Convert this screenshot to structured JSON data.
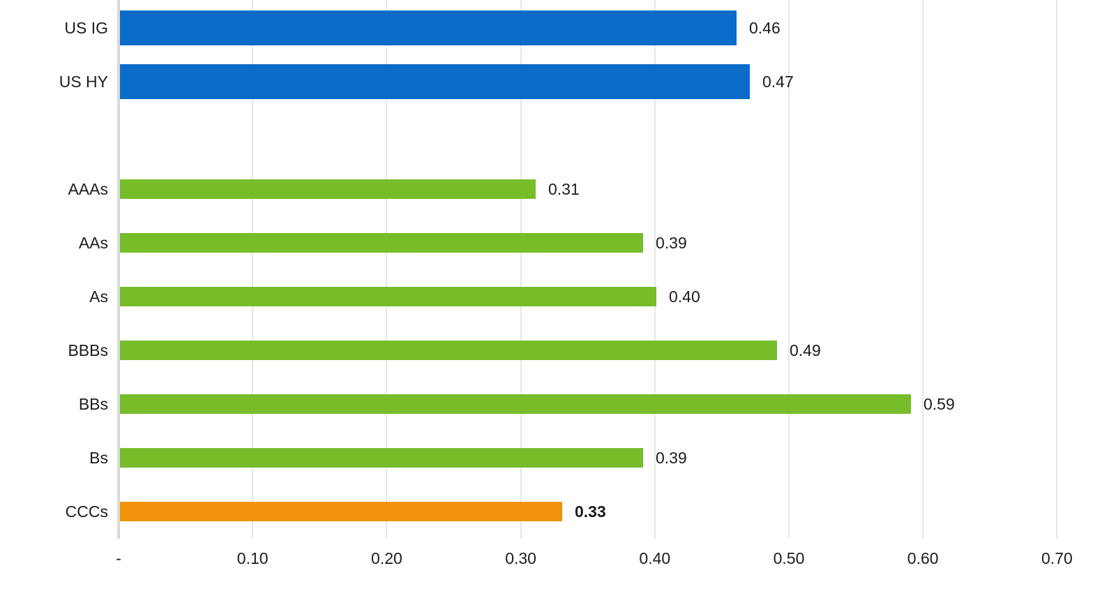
{
  "chart_data": {
    "type": "bar",
    "orientation": "horizontal",
    "title": "",
    "xlabel": "",
    "ylabel": "",
    "xlim": [
      0,
      0.7
    ],
    "grid": true,
    "legend": false,
    "x_ticks": [
      {
        "value": 0.0,
        "label": "-"
      },
      {
        "value": 0.1,
        "label": "0.10"
      },
      {
        "value": 0.2,
        "label": "0.20"
      },
      {
        "value": 0.3,
        "label": "0.30"
      },
      {
        "value": 0.4,
        "label": "0.40"
      },
      {
        "value": 0.5,
        "label": "0.50"
      },
      {
        "value": 0.6,
        "label": "0.60"
      },
      {
        "value": 0.7,
        "label": "0.70"
      }
    ],
    "colors": {
      "blue": "#0a6cc8",
      "green": "#77bd2a",
      "orange": "#f0930a",
      "gridline": "#e7e7e7",
      "axis": "#d9d9d9",
      "text": "#1c1c1c"
    },
    "categories": [
      "US IG",
      "US HY",
      "AAAs",
      "AAs",
      "As",
      "BBBs",
      "BBs",
      "Bs",
      "CCCs"
    ],
    "values": [
      0.46,
      0.47,
      0.31,
      0.39,
      0.4,
      0.49,
      0.59,
      0.39,
      0.33
    ],
    "bars": [
      {
        "category": "US IG",
        "value": 0.46,
        "value_label": "0.46",
        "color": "blue",
        "thick": true,
        "bold_value": false,
        "gap_after": false
      },
      {
        "category": "US HY",
        "value": 0.47,
        "value_label": "0.47",
        "color": "blue",
        "thick": true,
        "bold_value": false,
        "gap_after": true
      },
      {
        "category": "AAAs",
        "value": 0.31,
        "value_label": "0.31",
        "color": "green",
        "thick": false,
        "bold_value": false,
        "gap_after": false
      },
      {
        "category": "AAs",
        "value": 0.39,
        "value_label": "0.39",
        "color": "green",
        "thick": false,
        "bold_value": false,
        "gap_after": false
      },
      {
        "category": "As",
        "value": 0.4,
        "value_label": "0.40",
        "color": "green",
        "thick": false,
        "bold_value": false,
        "gap_after": false
      },
      {
        "category": "BBBs",
        "value": 0.49,
        "value_label": "0.49",
        "color": "green",
        "thick": false,
        "bold_value": false,
        "gap_after": false
      },
      {
        "category": "BBs",
        "value": 0.59,
        "value_label": "0.59",
        "color": "green",
        "thick": false,
        "bold_value": false,
        "gap_after": false
      },
      {
        "category": "Bs",
        "value": 0.39,
        "value_label": "0.39",
        "color": "green",
        "thick": false,
        "bold_value": false,
        "gap_after": false
      },
      {
        "category": "CCCs",
        "value": 0.33,
        "value_label": "0.33",
        "color": "orange",
        "thick": false,
        "bold_value": true,
        "gap_after": false
      }
    ]
  }
}
